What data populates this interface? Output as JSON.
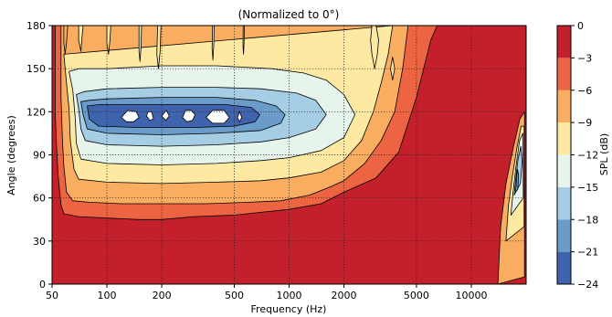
{
  "chart_data": {
    "type": "heatmap",
    "title": "(Normalized to 0°)",
    "xlabel": "Frequency (Hz)",
    "ylabel": "Angle (degrees)",
    "x_scale": "log",
    "xlim": [
      50,
      20000
    ],
    "ylim": [
      0,
      180
    ],
    "x_ticks": [
      {
        "value": 50,
        "label": "50"
      },
      {
        "value": 100,
        "label": "100"
      },
      {
        "value": 200,
        "label": "200"
      },
      {
        "value": 500,
        "label": "500"
      },
      {
        "value": 1000,
        "label": "1000"
      },
      {
        "value": 2000,
        "label": "2000"
      },
      {
        "value": 5000,
        "label": "5000"
      },
      {
        "value": 10000,
        "label": "10000"
      }
    ],
    "y_ticks": [
      {
        "value": 0,
        "label": "0"
      },
      {
        "value": 30,
        "label": "30"
      },
      {
        "value": 60,
        "label": "60"
      },
      {
        "value": 90,
        "label": "90"
      },
      {
        "value": 120,
        "label": "120"
      },
      {
        "value": 150,
        "label": "150"
      },
      {
        "value": 180,
        "label": "180"
      }
    ],
    "grid": true,
    "colorbar": {
      "label": "SPL (dB)",
      "min": -24,
      "max": 0,
      "levels": [
        {
          "from": -24,
          "to": -21,
          "color": "#3f64ad"
        },
        {
          "from": -21,
          "to": -18,
          "color": "#6b9bc8"
        },
        {
          "from": -18,
          "to": -15,
          "color": "#a5cde3"
        },
        {
          "from": -15,
          "to": -12,
          "color": "#e6f4ec"
        },
        {
          "from": -12,
          "to": -9,
          "color": "#fde9a2"
        },
        {
          "from": -9,
          "to": -6,
          "color": "#f9ad60"
        },
        {
          "from": -6,
          "to": -3,
          "color": "#ec6442"
        },
        {
          "from": -3,
          "to": 0,
          "color": "#c4202b"
        }
      ],
      "ticks": [
        {
          "value": 0,
          "label": "0"
        },
        {
          "value": -3,
          "label": "−3"
        },
        {
          "value": -6,
          "label": "−6"
        },
        {
          "value": -9,
          "label": "−9"
        },
        {
          "value": -12,
          "label": "−12"
        },
        {
          "value": -15,
          "label": "−15"
        },
        {
          "value": -18,
          "label": "−18"
        },
        {
          "value": -21,
          "label": "−21"
        },
        {
          "value": -24,
          "label": "−24"
        }
      ]
    },
    "contour_bands": [
      {
        "level": -3,
        "points": [
          [
            52,
            180
          ],
          [
            52,
            120
          ],
          [
            53,
            95
          ],
          [
            54,
            75
          ],
          [
            56,
            55
          ],
          [
            58,
            49
          ],
          [
            70,
            47
          ],
          [
            100,
            46
          ],
          [
            150,
            45
          ],
          [
            200,
            45
          ],
          [
            300,
            47
          ],
          [
            500,
            48
          ],
          [
            700,
            50
          ],
          [
            1000,
            52
          ],
          [
            1500,
            56
          ],
          [
            2000,
            64
          ],
          [
            3000,
            74
          ],
          [
            4000,
            92
          ],
          [
            5000,
            130
          ],
          [
            6000,
            170
          ],
          [
            6500,
            180
          ]
        ]
      },
      {
        "level": -6,
        "points": [
          [
            56,
            180
          ],
          [
            56,
            130
          ],
          [
            57,
            100
          ],
          [
            58,
            82
          ],
          [
            60,
            64
          ],
          [
            65,
            58
          ],
          [
            80,
            57
          ],
          [
            120,
            56
          ],
          [
            200,
            56
          ],
          [
            350,
            56
          ],
          [
            600,
            57
          ],
          [
            900,
            58
          ],
          [
            1300,
            62
          ],
          [
            1700,
            68
          ],
          [
            2000,
            72
          ],
          [
            2600,
            84
          ],
          [
            3200,
            100
          ],
          [
            3800,
            120
          ],
          [
            4200,
            150
          ],
          [
            4500,
            180
          ]
        ]
      },
      {
        "level": -9,
        "points": [
          [
            58,
            160
          ],
          [
            60,
            140
          ],
          [
            62,
            122
          ],
          [
            63,
            100
          ],
          [
            66,
            80
          ],
          [
            70,
            73
          ],
          [
            100,
            71
          ],
          [
            200,
            70
          ],
          [
            400,
            71
          ],
          [
            700,
            72
          ],
          [
            1000,
            74
          ],
          [
            1500,
            78
          ],
          [
            2000,
            86
          ],
          [
            2500,
            100
          ],
          [
            2900,
            120
          ],
          [
            3200,
            140
          ],
          [
            3500,
            160
          ],
          [
            3700,
            180
          ]
        ]
      },
      {
        "level": -12,
        "points": [
          [
            62,
            148
          ],
          [
            65,
            135
          ],
          [
            67,
            115
          ],
          [
            68,
            98
          ],
          [
            72,
            87
          ],
          [
            100,
            84
          ],
          [
            200,
            83
          ],
          [
            400,
            84
          ],
          [
            700,
            86
          ],
          [
            1000,
            88
          ],
          [
            1500,
            93
          ],
          [
            2000,
            102
          ],
          [
            2300,
            118
          ],
          [
            2000,
            132
          ],
          [
            1600,
            142
          ],
          [
            1200,
            147
          ],
          [
            800,
            150
          ],
          [
            400,
            152
          ],
          [
            200,
            152
          ],
          [
            100,
            150
          ],
          [
            70,
            150
          ]
        ]
      },
      {
        "level": -15,
        "points": [
          [
            68,
            132
          ],
          [
            70,
            122
          ],
          [
            72,
            108
          ],
          [
            76,
            100
          ],
          [
            100,
            97
          ],
          [
            200,
            96
          ],
          [
            400,
            97
          ],
          [
            700,
            99
          ],
          [
            1000,
            102
          ],
          [
            1400,
            108
          ],
          [
            1600,
            118
          ],
          [
            1400,
            128
          ],
          [
            1100,
            133
          ],
          [
            700,
            136
          ],
          [
            400,
            137
          ],
          [
            200,
            137
          ],
          [
            100,
            136
          ],
          [
            75,
            134
          ]
        ]
      },
      {
        "level": -18,
        "points": [
          [
            72,
            127
          ],
          [
            74,
            118
          ],
          [
            78,
            108
          ],
          [
            100,
            105
          ],
          [
            200,
            104
          ],
          [
            400,
            105
          ],
          [
            700,
            107
          ],
          [
            900,
            112
          ],
          [
            950,
            118
          ],
          [
            850,
            124
          ],
          [
            650,
            128
          ],
          [
            400,
            130
          ],
          [
            200,
            130
          ],
          [
            100,
            129
          ],
          [
            80,
            128
          ]
        ]
      },
      {
        "level": -21,
        "points": [
          [
            78,
            124
          ],
          [
            80,
            115
          ],
          [
            90,
            110
          ],
          [
            150,
            109
          ],
          [
            300,
            109
          ],
          [
            500,
            110
          ],
          [
            650,
            113
          ],
          [
            690,
            118
          ],
          [
            620,
            123
          ],
          [
            450,
            125
          ],
          [
            250,
            125
          ],
          [
            120,
            125
          ],
          [
            90,
            125
          ]
        ]
      }
    ],
    "holes": [
      {
        "points": [
          [
            120,
            116
          ],
          [
            128,
            113
          ],
          [
            140,
            113
          ],
          [
            150,
            116
          ],
          [
            145,
            120
          ],
          [
            130,
            121
          ]
        ]
      },
      {
        "points": [
          [
            165,
            117
          ],
          [
            172,
            114
          ],
          [
            180,
            115
          ],
          [
            176,
            120
          ],
          [
            168,
            120
          ]
        ]
      },
      {
        "points": [
          [
            200,
            117
          ],
          [
            210,
            114
          ],
          [
            220,
            117
          ],
          [
            212,
            121
          ]
        ]
      },
      {
        "points": [
          [
            260,
            116
          ],
          [
            275,
            113
          ],
          [
            295,
            114
          ],
          [
            305,
            118
          ],
          [
            290,
            121
          ],
          [
            270,
            121
          ]
        ]
      },
      {
        "points": [
          [
            350,
            116
          ],
          [
            380,
            112
          ],
          [
            440,
            112
          ],
          [
            470,
            116
          ],
          [
            440,
            121
          ],
          [
            380,
            121
          ]
        ]
      },
      {
        "points": [
          [
            520,
            116
          ],
          [
            535,
            113
          ],
          [
            550,
            116
          ],
          [
            535,
            120
          ]
        ]
      }
    ],
    "high_freq_feature": [
      {
        "level": -6,
        "points": [
          [
            14000,
            0
          ],
          [
            14500,
            40
          ],
          [
            15500,
            70
          ],
          [
            17000,
            95
          ],
          [
            18500,
            115
          ],
          [
            19600,
            120
          ],
          [
            19600,
            5
          ]
        ]
      },
      {
        "level": -9,
        "points": [
          [
            15500,
            30
          ],
          [
            16000,
            55
          ],
          [
            16800,
            75
          ],
          [
            17800,
            95
          ],
          [
            18800,
            110
          ],
          [
            19500,
            110
          ],
          [
            19500,
            40
          ]
        ]
      },
      {
        "level": -12,
        "points": [
          [
            16500,
            48
          ],
          [
            17000,
            65
          ],
          [
            17600,
            82
          ],
          [
            18400,
            100
          ],
          [
            19200,
            105
          ],
          [
            19300,
            60
          ]
        ]
      },
      {
        "level": -15,
        "points": [
          [
            17200,
            62
          ],
          [
            17500,
            72
          ],
          [
            18000,
            86
          ],
          [
            18700,
            96
          ],
          [
            19000,
            85
          ],
          [
            18600,
            70
          ]
        ]
      },
      {
        "level": -18,
        "points": [
          [
            17500,
            64
          ],
          [
            17700,
            72
          ],
          [
            17900,
            80
          ],
          [
            18200,
            76
          ],
          [
            18000,
            66
          ]
        ]
      }
    ],
    "spikes": [
      {
        "level": -6,
        "points": [
          [
            58,
            180
          ],
          [
            58,
            168
          ],
          [
            59,
            160
          ],
          [
            60,
            168
          ],
          [
            61,
            180
          ]
        ]
      },
      {
        "level": -9,
        "points": [
          [
            70,
            180
          ],
          [
            70,
            170
          ],
          [
            72,
            162
          ],
          [
            73,
            172
          ],
          [
            74,
            180
          ]
        ]
      },
      {
        "level": -9,
        "points": [
          [
            100,
            180
          ],
          [
            100,
            168
          ],
          [
            102,
            160
          ],
          [
            104,
            170
          ],
          [
            105,
            180
          ]
        ]
      },
      {
        "level": -9,
        "points": [
          [
            150,
            180
          ],
          [
            150,
            162
          ],
          [
            152,
            155
          ],
          [
            154,
            165
          ],
          [
            155,
            180
          ]
        ]
      },
      {
        "level": -9,
        "points": [
          [
            190,
            180
          ],
          [
            188,
            160
          ],
          [
            192,
            150
          ],
          [
            196,
            162
          ],
          [
            198,
            180
          ]
        ]
      },
      {
        "level": -9,
        "points": [
          [
            380,
            180
          ],
          [
            378,
            164
          ],
          [
            382,
            156
          ],
          [
            386,
            166
          ],
          [
            388,
            180
          ]
        ]
      },
      {
        "level": -9,
        "points": [
          [
            560,
            180
          ],
          [
            558,
            166
          ],
          [
            562,
            160
          ],
          [
            566,
            168
          ],
          [
            568,
            180
          ]
        ]
      },
      {
        "level": -9,
        "points": [
          [
            2800,
            170
          ],
          [
            2850,
            160
          ],
          [
            2950,
            150
          ],
          [
            3050,
            160
          ],
          [
            3100,
            170
          ],
          [
            3000,
            180
          ],
          [
            2850,
            180
          ]
        ]
      },
      {
        "level": -9,
        "points": [
          [
            3600,
            150
          ],
          [
            3700,
            142
          ],
          [
            3800,
            150
          ],
          [
            3700,
            158
          ]
        ]
      }
    ]
  }
}
